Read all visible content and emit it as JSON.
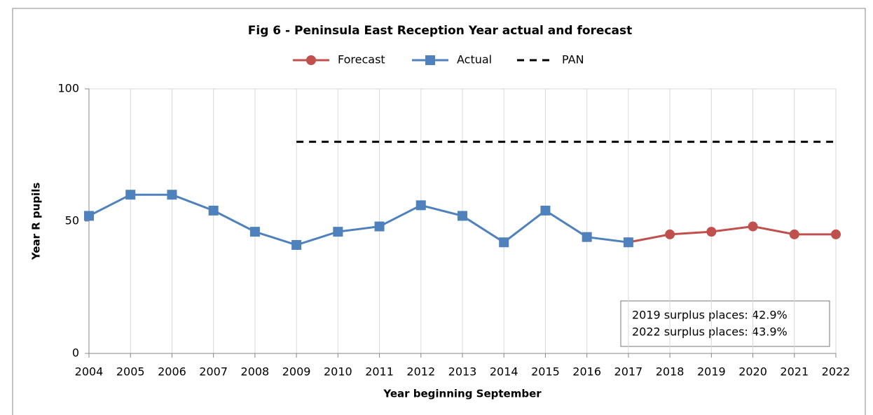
{
  "chart_data": {
    "type": "line",
    "title": "Fig 6 - Peninsula East Reception Year actual and forecast",
    "x_label": "Year beginning September",
    "y_label": "Year R pupils",
    "categories": [
      "2004",
      "2005",
      "2006",
      "2007",
      "2008",
      "2009",
      "2010",
      "2011",
      "2012",
      "2013",
      "2014",
      "2015",
      "2016",
      "2017",
      "2018",
      "2019",
      "2020",
      "2021",
      "2022"
    ],
    "series": [
      {
        "name": "Forecast",
        "color": "#c0504d",
        "marker": "circle",
        "dash": false,
        "values": [
          null,
          null,
          null,
          null,
          null,
          null,
          null,
          null,
          null,
          null,
          null,
          null,
          null,
          42,
          45,
          46,
          48,
          45,
          45
        ]
      },
      {
        "name": "Actual",
        "color": "#4f81bd",
        "marker": "square",
        "dash": false,
        "values": [
          52,
          60,
          60,
          54,
          46,
          41,
          46,
          48,
          56,
          52,
          42,
          54,
          44,
          42,
          null,
          null,
          null,
          null,
          null
        ]
      },
      {
        "name": "PAN",
        "color": "#000000",
        "marker": "none",
        "dash": true,
        "values": [
          null,
          null,
          null,
          null,
          null,
          80,
          80,
          80,
          80,
          80,
          80,
          80,
          80,
          80,
          80,
          80,
          80,
          80,
          80
        ]
      }
    ],
    "ylim": [
      0,
      100
    ],
    "yticks": [
      0,
      50,
      100
    ],
    "grid": true,
    "legend": "top",
    "annotations": [
      "2019 surplus places: 42.9%",
      "2022 surplus places: 43.9%"
    ]
  }
}
